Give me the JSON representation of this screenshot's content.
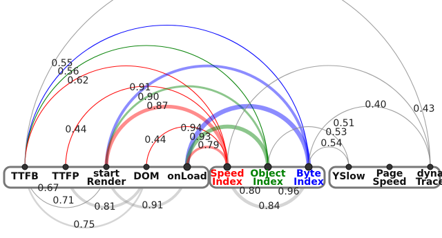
{
  "groups": [
    {
      "id": "timing",
      "nodes": [
        "ttfb",
        "ttfp",
        "start_render",
        "dom",
        "onload"
      ]
    },
    {
      "id": "visual",
      "nodes": [
        "speed_index",
        "object_index",
        "byte_index"
      ]
    },
    {
      "id": "scores",
      "nodes": [
        "yslow",
        "page_speed",
        "dyna_trace"
      ]
    }
  ],
  "nodes": {
    "ttfb": {
      "lines": [
        "TTFB"
      ],
      "color": "#111111"
    },
    "ttfp": {
      "lines": [
        "TTFP"
      ],
      "color": "#111111"
    },
    "start_render": {
      "lines": [
        "start",
        "Render"
      ],
      "color": "#111111"
    },
    "dom": {
      "lines": [
        "DOM"
      ],
      "color": "#111111"
    },
    "onload": {
      "lines": [
        "onLoad"
      ],
      "color": "#111111"
    },
    "speed_index": {
      "lines": [
        "Speed",
        "Index"
      ],
      "color": "#ff0000"
    },
    "object_index": {
      "lines": [
        "Object",
        "Index"
      ],
      "color": "#008000"
    },
    "byte_index": {
      "lines": [
        "Byte",
        "Index"
      ],
      "color": "#0000ff"
    },
    "yslow": {
      "lines": [
        "YSlow"
      ],
      "color": "#111111"
    },
    "page_speed": {
      "lines": [
        "Page",
        "Speed"
      ],
      "color": "#111111"
    },
    "dyna_trace": {
      "lines": [
        "dyna",
        "Trace"
      ],
      "color": "#111111"
    }
  },
  "correlations": [
    {
      "a": "ttfb",
      "b": "byte_index",
      "value": "0.55",
      "side": "above",
      "color": "#0000ff"
    },
    {
      "a": "ttfb",
      "b": "object_index",
      "value": "0.56",
      "side": "above",
      "color": "#008000"
    },
    {
      "a": "ttfb",
      "b": "speed_index",
      "value": "0.62",
      "side": "above",
      "color": "#ff0000"
    },
    {
      "a": "ttfp",
      "b": "speed_index",
      "value": "0.44",
      "side": "above",
      "color": "#ff0000"
    },
    {
      "a": "start_render",
      "b": "byte_index",
      "value": "0.91",
      "side": "above",
      "color": "#0000ff"
    },
    {
      "a": "start_render",
      "b": "object_index",
      "value": "0.90",
      "side": "above",
      "color": "#008000"
    },
    {
      "a": "start_render",
      "b": "speed_index",
      "value": "0.87",
      "side": "above",
      "color": "#ff0000"
    },
    {
      "a": "dom",
      "b": "speed_index",
      "value": "0.44",
      "side": "above",
      "color": "#ff0000"
    },
    {
      "a": "onload",
      "b": "byte_index",
      "value": "0.94",
      "side": "above",
      "color": "#0000ff"
    },
    {
      "a": "onload",
      "b": "object_index",
      "value": "0.93",
      "side": "above",
      "color": "#008000"
    },
    {
      "a": "onload",
      "b": "speed_index",
      "value": "0.79",
      "side": "above",
      "color": "#ff0000"
    },
    {
      "a": "ttfb",
      "b": "dyna_trace",
      "value": "0.43",
      "side": "above",
      "color": "#888888"
    },
    {
      "a": "speed_index",
      "b": "dyna_trace",
      "value": "0.40",
      "side": "above",
      "color": "#888888"
    },
    {
      "a": "object_index",
      "b": "yslow",
      "value": "0.51",
      "side": "above",
      "color": "#888888"
    },
    {
      "a": "byte_index",
      "b": "dyna_trace",
      "value": "0.53",
      "side": "above",
      "color": "#888888"
    },
    {
      "a": "byte_index",
      "b": "yslow",
      "value": "0.54",
      "side": "above",
      "color": "#888888"
    },
    {
      "a": "ttfb",
      "b": "ttfp",
      "value": "0.67",
      "side": "below",
      "color": "#888888"
    },
    {
      "a": "ttfb",
      "b": "start_render",
      "value": "0.71",
      "side": "below",
      "color": "#888888"
    },
    {
      "a": "ttfb",
      "b": "dom",
      "value": "0.75",
      "side": "below",
      "color": "#888888"
    },
    {
      "a": "ttfp",
      "b": "dom",
      "value": "0.81",
      "side": "below",
      "color": "#888888"
    },
    {
      "a": "start_render",
      "b": "onload",
      "value": "0.91",
      "side": "below",
      "color": "#888888"
    },
    {
      "a": "speed_index",
      "b": "object_index",
      "value": "0.80",
      "side": "below",
      "color": "#888888"
    },
    {
      "a": "speed_index",
      "b": "byte_index",
      "value": "0.84",
      "side": "below",
      "color": "#888888"
    },
    {
      "a": "object_index",
      "b": "byte_index",
      "value": "0.96",
      "side": "below",
      "color": "#888888"
    }
  ]
}
